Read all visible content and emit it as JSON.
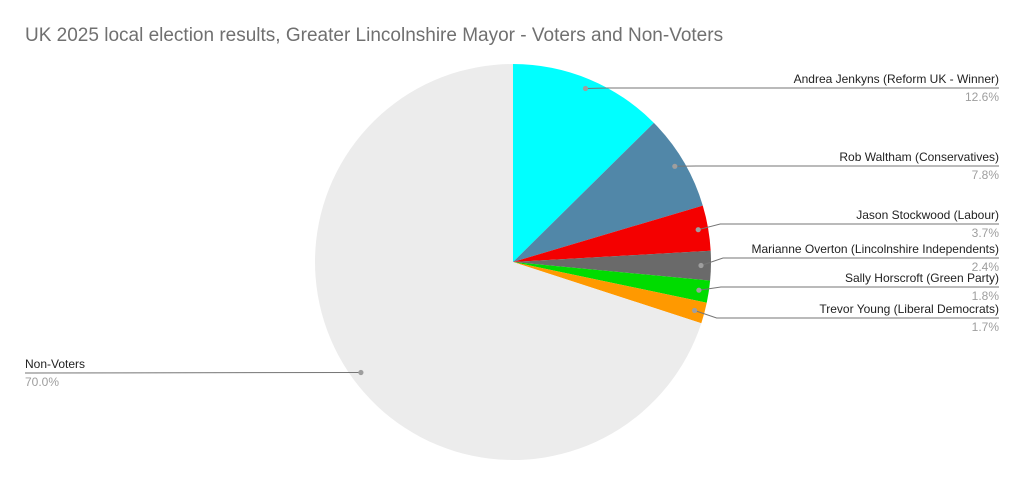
{
  "title": "UK 2025 local election results, Greater Lincolnshire Mayor - Voters and Non-Voters",
  "chart_data": {
    "type": "pie",
    "title": "UK 2025 local election results, Greater Lincolnshire Mayor - Voters and Non-Voters",
    "start_angle_deg": 0,
    "direction": "clockwise",
    "legend_position": "outside-callout-labels",
    "slices": [
      {
        "label": "Andrea Jenkyns (Reform UK - Winner)",
        "value": 12.6,
        "pct_label": "12.6%",
        "color": "#00ffff"
      },
      {
        "label": "Rob Waltham (Conservatives)",
        "value": 7.8,
        "pct_label": "7.8%",
        "color": "#5187a8"
      },
      {
        "label": "Jason Stockwood (Labour)",
        "value": 3.7,
        "pct_label": "3.7%",
        "color": "#f40000"
      },
      {
        "label": "Marianne Overton (Lincolnshire Independents)",
        "value": 2.4,
        "pct_label": "2.4%",
        "color": "#6a6a6a"
      },
      {
        "label": "Sally Horscroft (Green Party)",
        "value": 1.8,
        "pct_label": "1.8%",
        "color": "#00dc00"
      },
      {
        "label": "Trevor Young (Liberal Democrats)",
        "value": 1.7,
        "pct_label": "1.7%",
        "color": "#ff9900"
      },
      {
        "label": "Non-Voters",
        "value": 70.0,
        "pct_label": "70.0%",
        "color": "#ececec"
      }
    ]
  },
  "colors": {
    "background": "#ffffff",
    "title_text": "#707070",
    "label_text": "#222222",
    "pct_text": "#9e9e9e",
    "leader_line": "#757575",
    "leader_dot": "#9e9e9e"
  }
}
